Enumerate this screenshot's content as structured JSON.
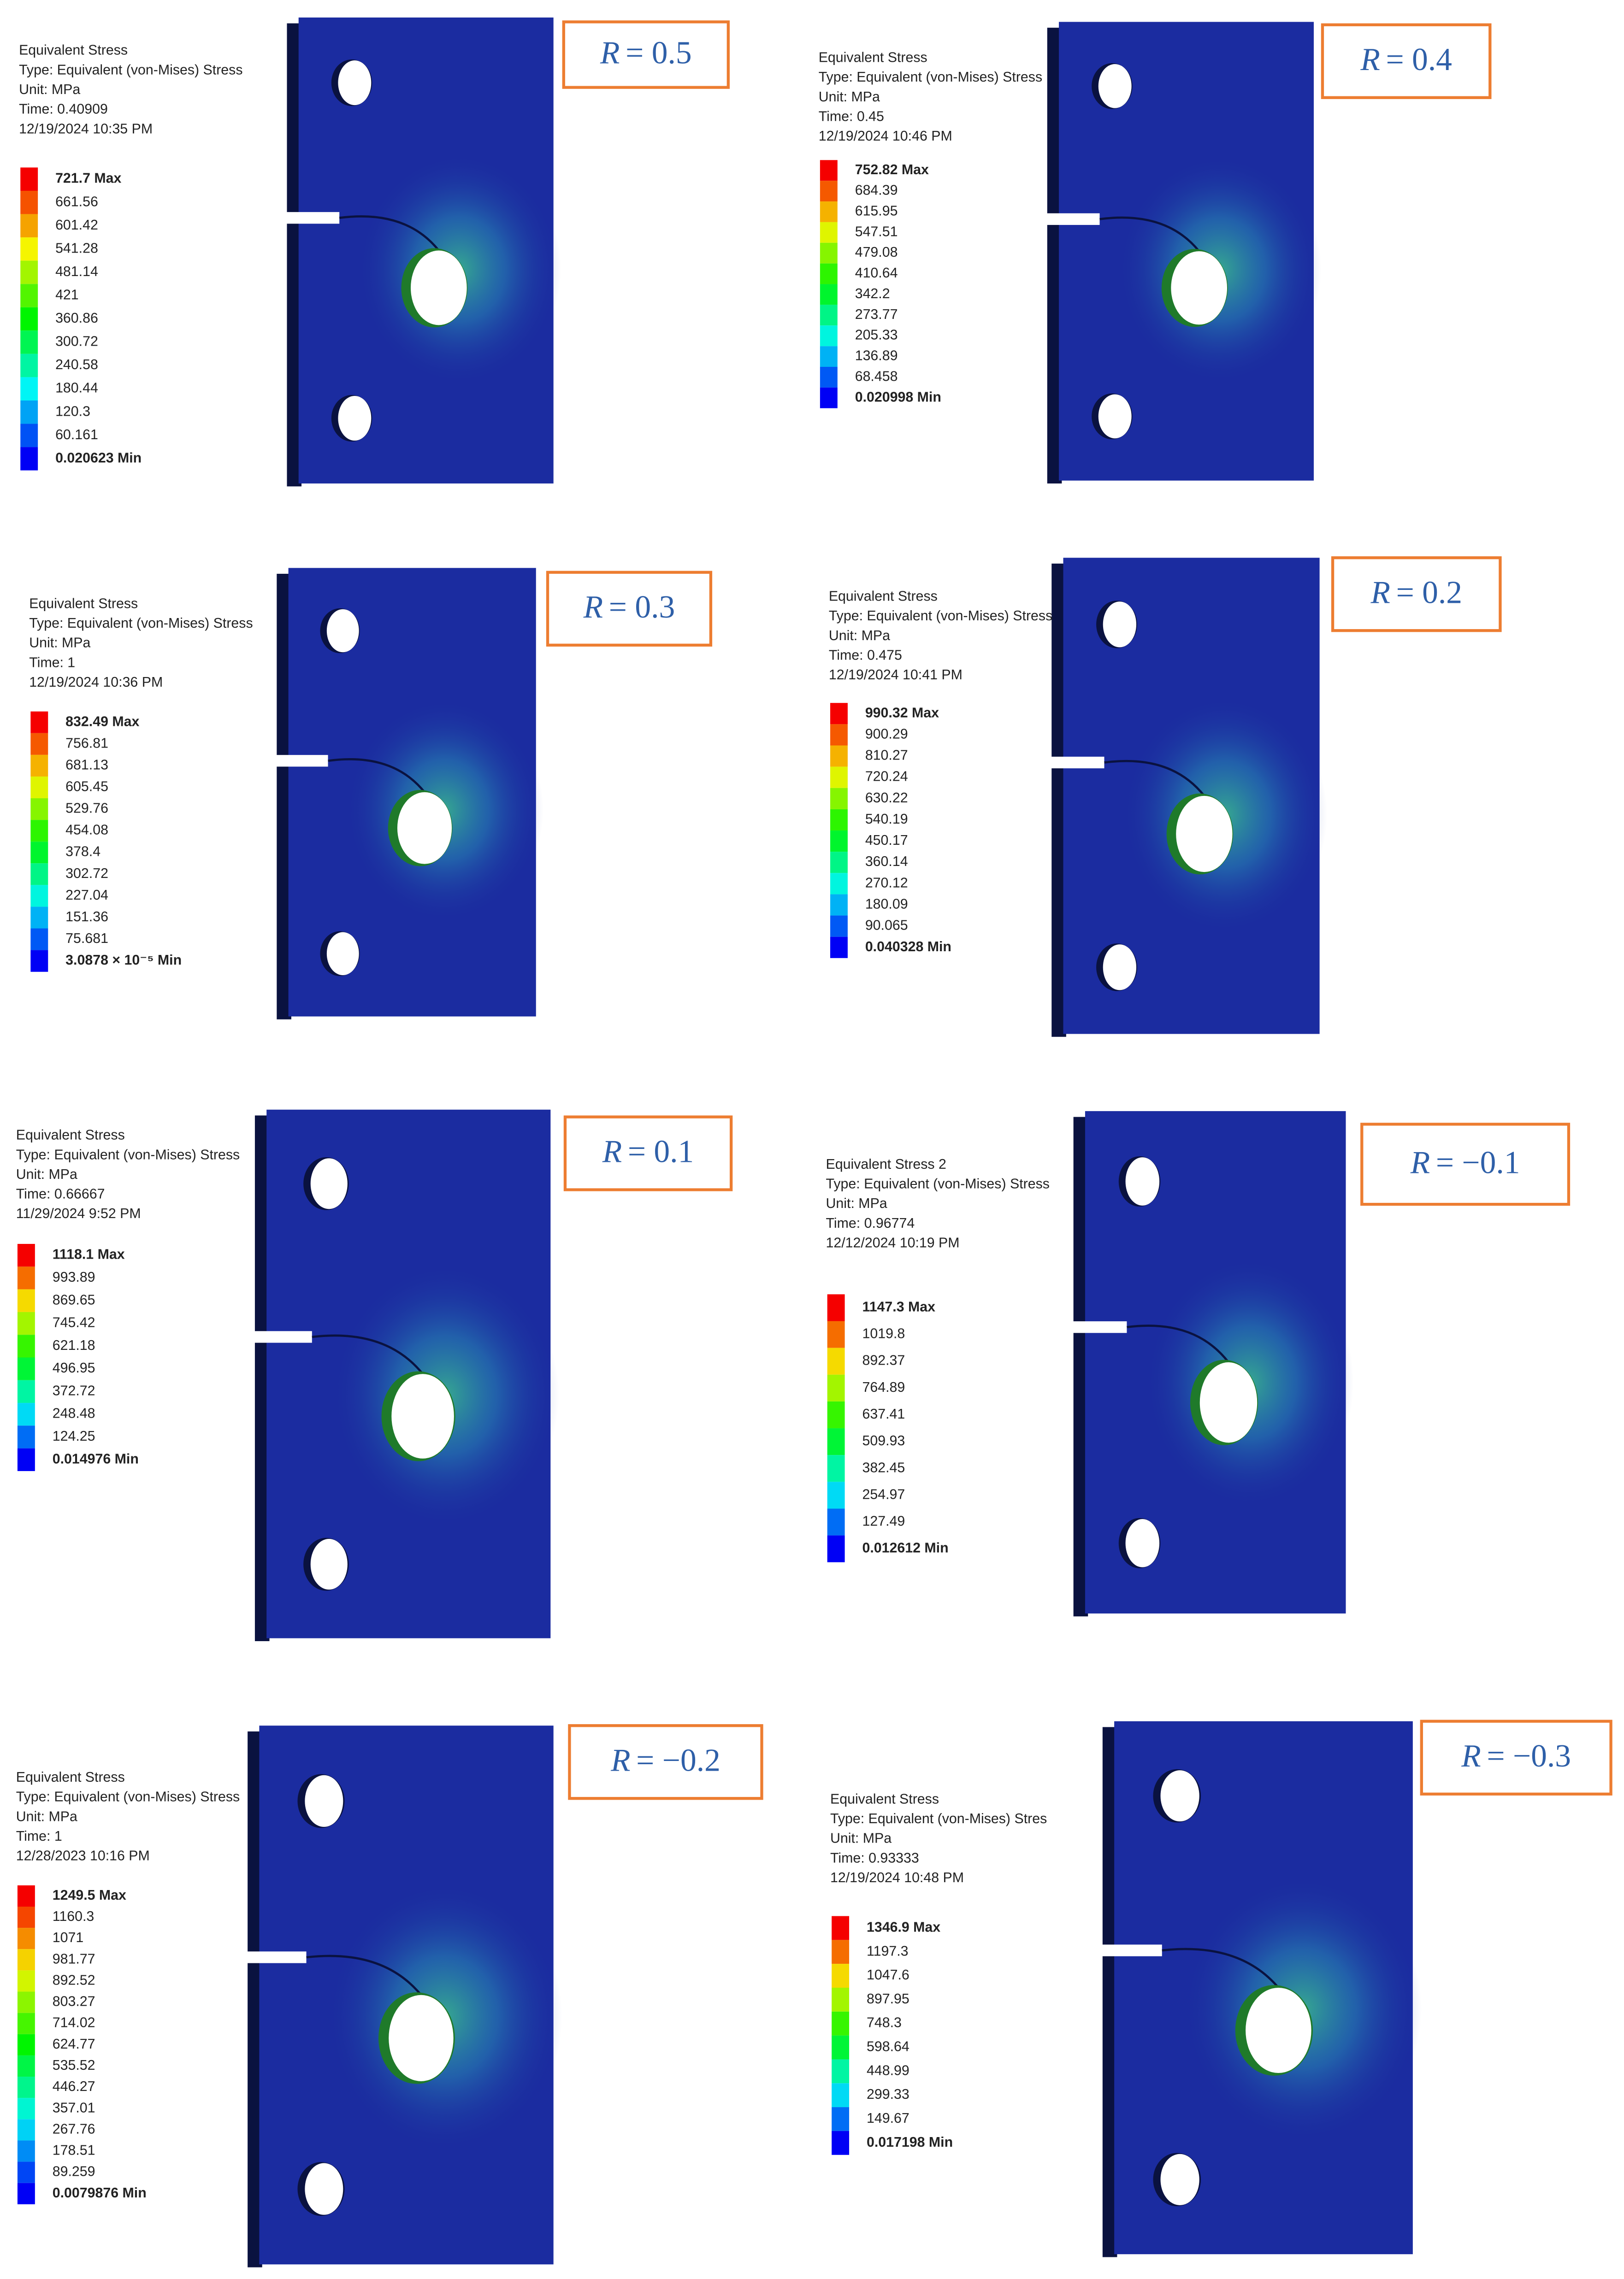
{
  "panels": [
    {
      "legend": [
        "Equivalent Stress",
        "Type: Equivalent (von-Mises) Stress",
        "Unit: MPa",
        "Time: 0.40909",
        "12/19/2024 10:35 PM"
      ],
      "scale": [
        "721.7 Max",
        "661.56",
        "601.42",
        "541.28",
        "481.14",
        "421",
        "360.86",
        "300.72",
        "240.58",
        "180.44",
        "120.3",
        "60.161",
        "0.020623 Min"
      ],
      "r": {
        "symbol": "R",
        "value": "= 0.5"
      }
    },
    {
      "legend": [
        "Equivalent Stress",
        "Type: Equivalent (von-Mises) Stress",
        "Unit: MPa",
        "Time: 0.45",
        "12/19/2024 10:46 PM"
      ],
      "scale": [
        "752.82 Max",
        "684.39",
        "615.95",
        "547.51",
        "479.08",
        "410.64",
        "342.2",
        "273.77",
        "205.33",
        "136.89",
        "68.458",
        "0.020998 Min"
      ],
      "r": {
        "symbol": "R",
        "value": "= 0.4"
      }
    },
    {
      "legend": [
        "Equivalent Stress",
        "Type: Equivalent (von-Mises) Stress",
        "Unit: MPa",
        "Time: 1",
        "12/19/2024 10:36 PM"
      ],
      "scale": [
        "832.49 Max",
        "756.81",
        "681.13",
        "605.45",
        "529.76",
        "454.08",
        "378.4",
        "302.72",
        "227.04",
        "151.36",
        "75.681",
        "3.0878 × 10⁻⁵ Min"
      ],
      "r": {
        "symbol": "R",
        "value": "= 0.3"
      }
    },
    {
      "legend": [
        "Equivalent Stress",
        "Type: Equivalent (von-Mises) Stress",
        "Unit: MPa",
        "Time: 0.475",
        "12/19/2024 10:41 PM"
      ],
      "scale": [
        "990.32 Max",
        "900.29",
        "810.27",
        "720.24",
        "630.22",
        "540.19",
        "450.17",
        "360.14",
        "270.12",
        "180.09",
        "90.065",
        "0.040328 Min"
      ],
      "r": {
        "symbol": "R",
        "value": "= 0.2"
      }
    },
    {
      "legend": [
        "Equivalent Stress",
        "Type: Equivalent (von-Mises) Stress",
        "Unit: MPa",
        "Time: 0.66667",
        "11/29/2024 9:52 PM"
      ],
      "scale": [
        "1118.1 Max",
        "993.89",
        "869.65",
        "745.42",
        "621.18",
        "496.95",
        "372.72",
        "248.48",
        "124.25",
        "0.014976 Min"
      ],
      "r": {
        "symbol": "R",
        "value": "= 0.1"
      }
    },
    {
      "legend": [
        "Equivalent Stress 2",
        "Type: Equivalent (von-Mises) Stress",
        "Unit: MPa",
        "Time: 0.96774",
        "12/12/2024 10:19 PM"
      ],
      "scale": [
        "1147.3 Max",
        "1019.8",
        "892.37",
        "764.89",
        "637.41",
        "509.93",
        "382.45",
        "254.97",
        "127.49",
        "0.012612 Min"
      ],
      "r": {
        "symbol": "R",
        "value": "= −0.1"
      }
    },
    {
      "legend": [
        "Equivalent Stress",
        "Type: Equivalent (von-Mises) Stress",
        "Unit: MPa",
        "Time: 1",
        "12/28/2023 10:16 PM"
      ],
      "scale": [
        "1249.5 Max",
        "1160.3",
        "1071",
        "981.77",
        "892.52",
        "803.27",
        "714.02",
        "624.77",
        "535.52",
        "446.27",
        "357.01",
        "267.76",
        "178.51",
        "89.259",
        "0.0079876 Min"
      ],
      "r": {
        "symbol": "R",
        "value": "= −0.2"
      }
    },
    {
      "legend": [
        "Equivalent Stress",
        "Type: Equivalent (von-Mises) Stres",
        "Unit: MPa",
        "Time: 0.93333",
        "12/19/2024 10:48 PM"
      ],
      "scale": [
        "1346.9 Max",
        "1197.3",
        "1047.6",
        "897.95",
        "748.3",
        "598.64",
        "448.99",
        "299.33",
        "149.67",
        "0.017198 Min"
      ],
      "r": {
        "symbol": "R",
        "value": "= −0.3"
      }
    }
  ]
}
